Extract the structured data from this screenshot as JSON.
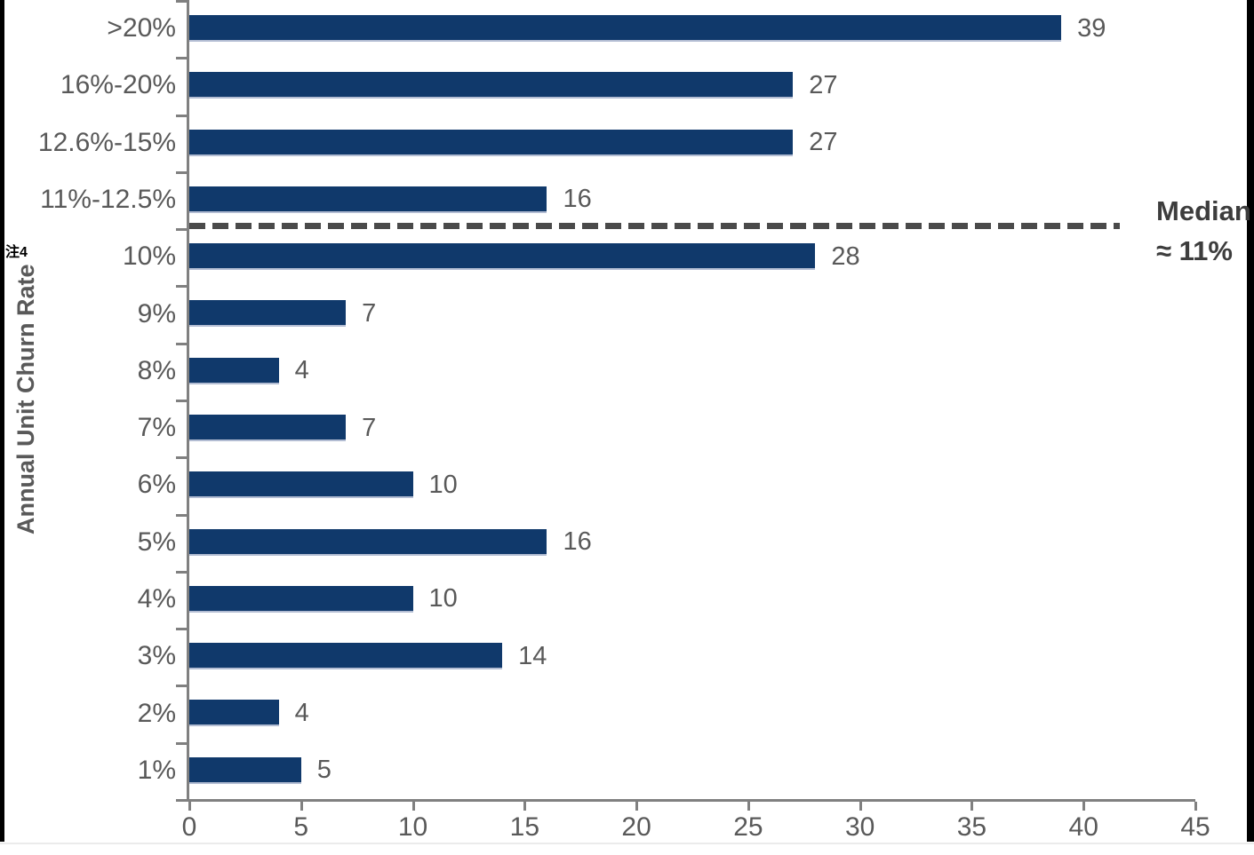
{
  "footnote": "注4",
  "chart_data": {
    "type": "bar",
    "orientation": "horizontal",
    "title": "",
    "ylabel": "Annual Unit Churn Rate",
    "xlabel": "",
    "categories": [
      ">20%",
      "16%-20%",
      "12.6%-15%",
      "11%-12.5%",
      "10%",
      "9%",
      "8%",
      "7%",
      "6%",
      "5%",
      "4%",
      "3%",
      "2%",
      "1%"
    ],
    "values": [
      39,
      27,
      27,
      16,
      28,
      7,
      4,
      7,
      10,
      16,
      10,
      14,
      4,
      5
    ],
    "xlim": [
      0,
      45
    ],
    "x_ticks": [
      0,
      5,
      10,
      15,
      20,
      25,
      30,
      35,
      40,
      45
    ],
    "grid": false,
    "data_labels": true,
    "median_annotation": {
      "lines": [
        "Median",
        "≈ 11%"
      ],
      "value": 11,
      "after_category_index": 3
    },
    "colors": {
      "bar": "#10396b",
      "axis": "#808080",
      "labels": "#595959",
      "median_line": "#4a4a4a",
      "median_text": "#3d3d3d"
    }
  }
}
